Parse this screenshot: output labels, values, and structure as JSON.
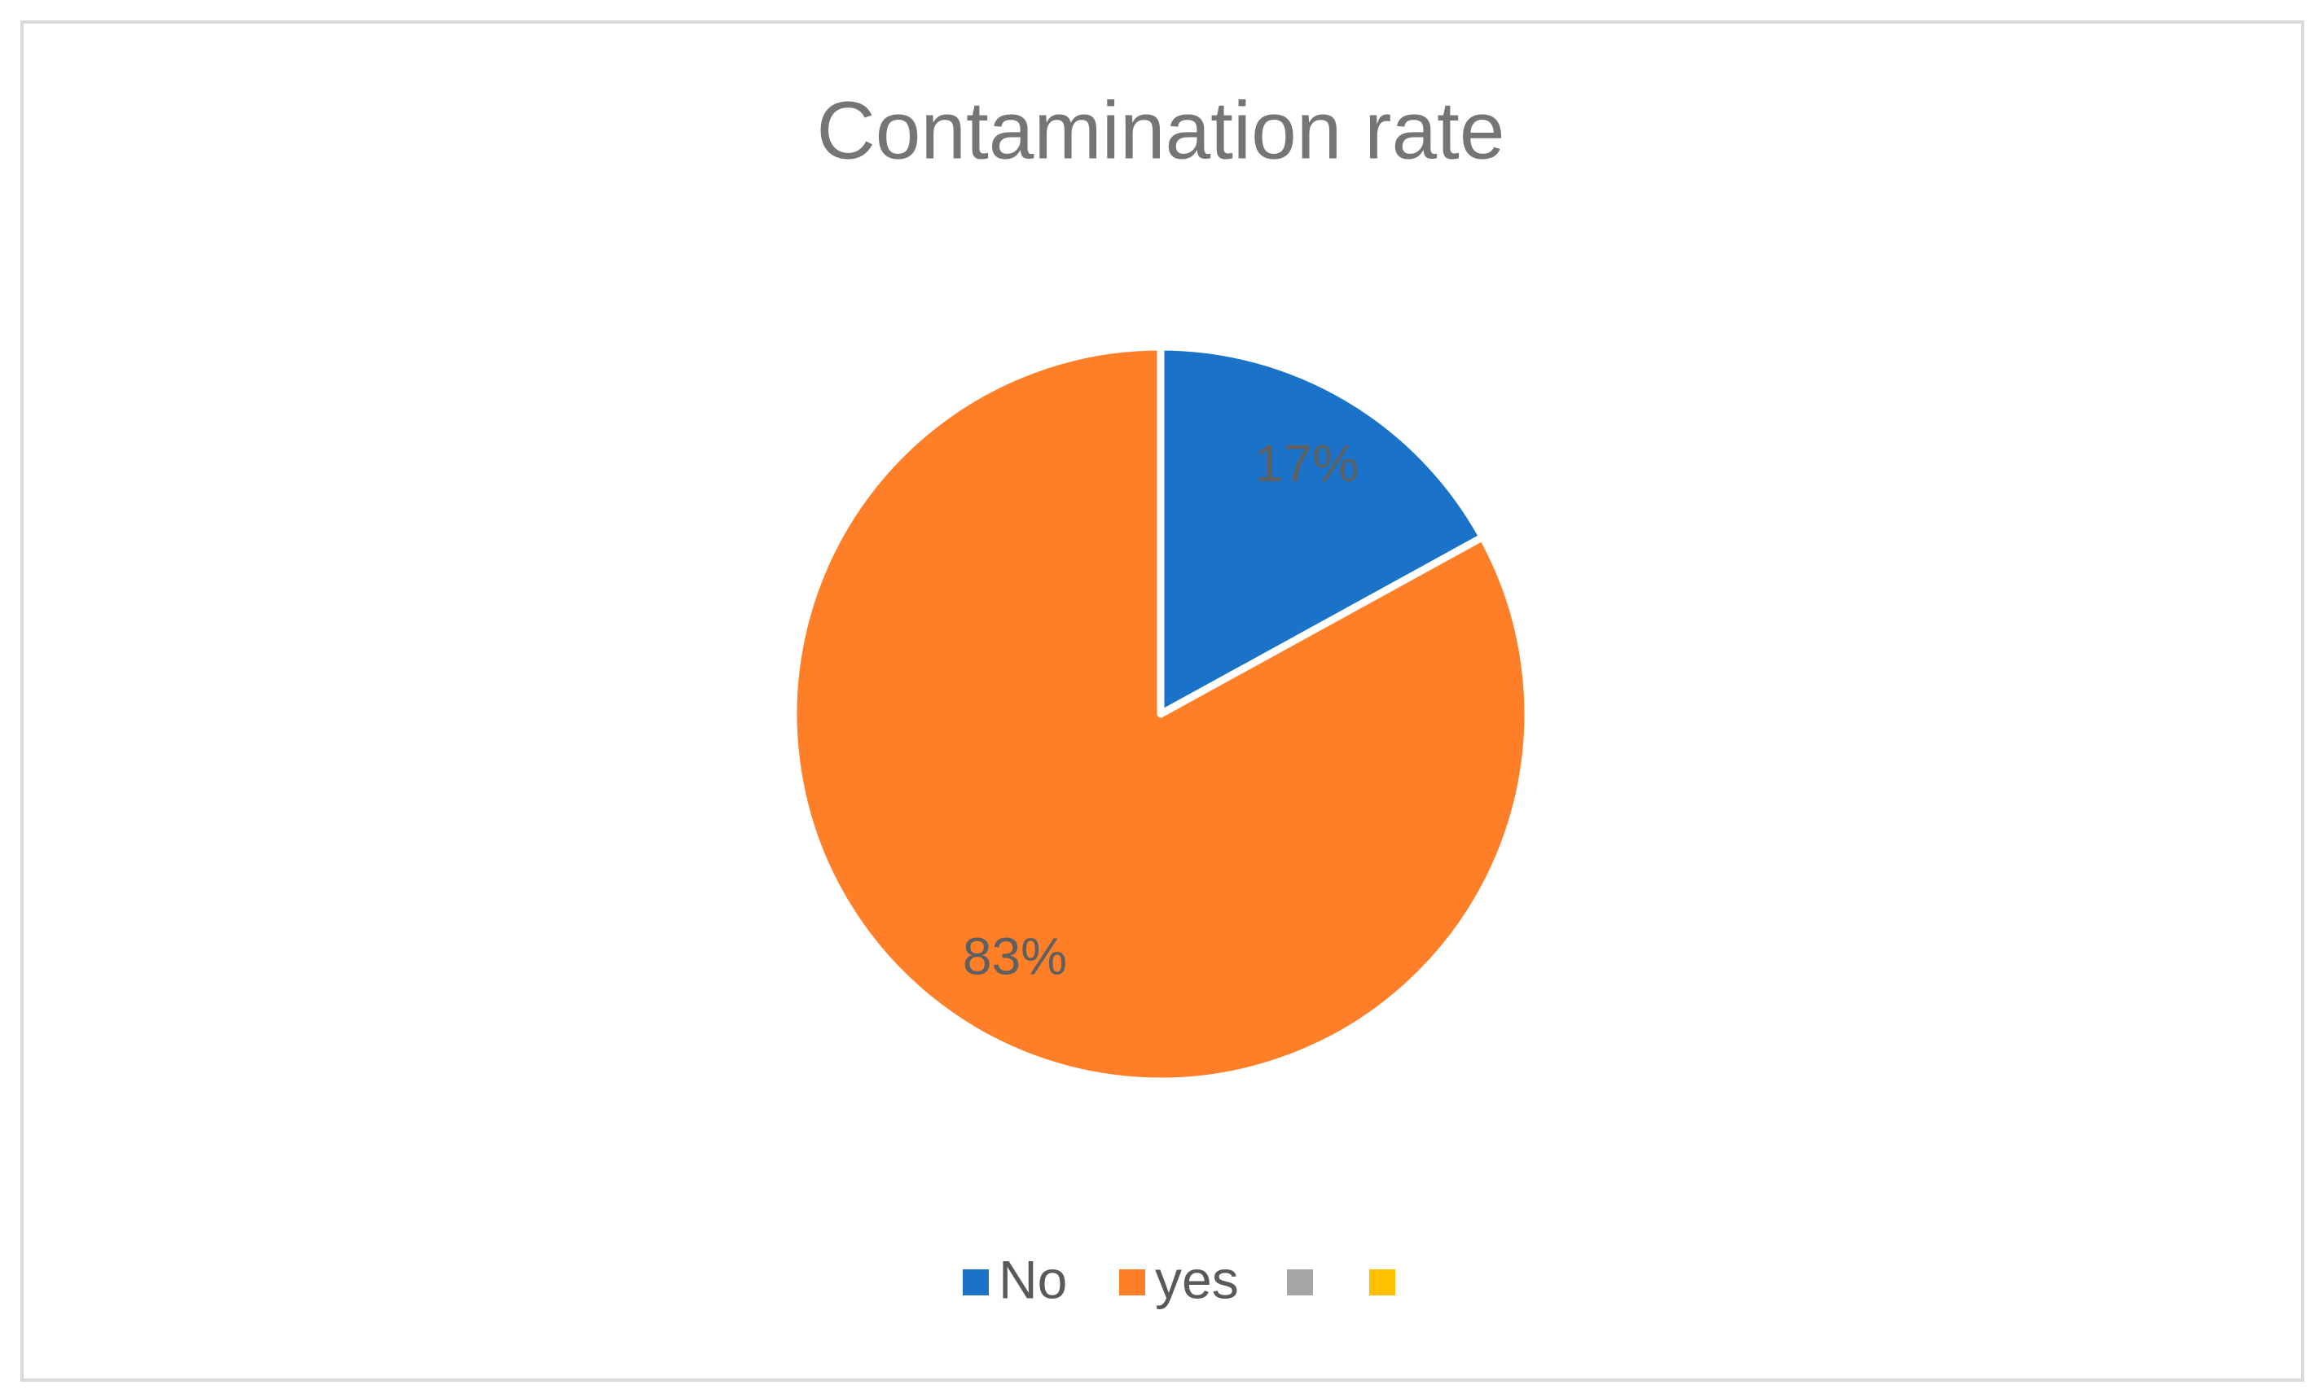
{
  "chart_data": {
    "type": "pie",
    "title": "Contamination rate",
    "categories": [
      "No",
      "yes",
      null,
      null
    ],
    "values": [
      17,
      83,
      0,
      0
    ],
    "value_labels": [
      "17%",
      "83%",
      null,
      null
    ],
    "colors": [
      "#1a73c8",
      "#fe7f27",
      "#a5a5a5",
      "#ffc000"
    ],
    "legend": "bottom"
  }
}
